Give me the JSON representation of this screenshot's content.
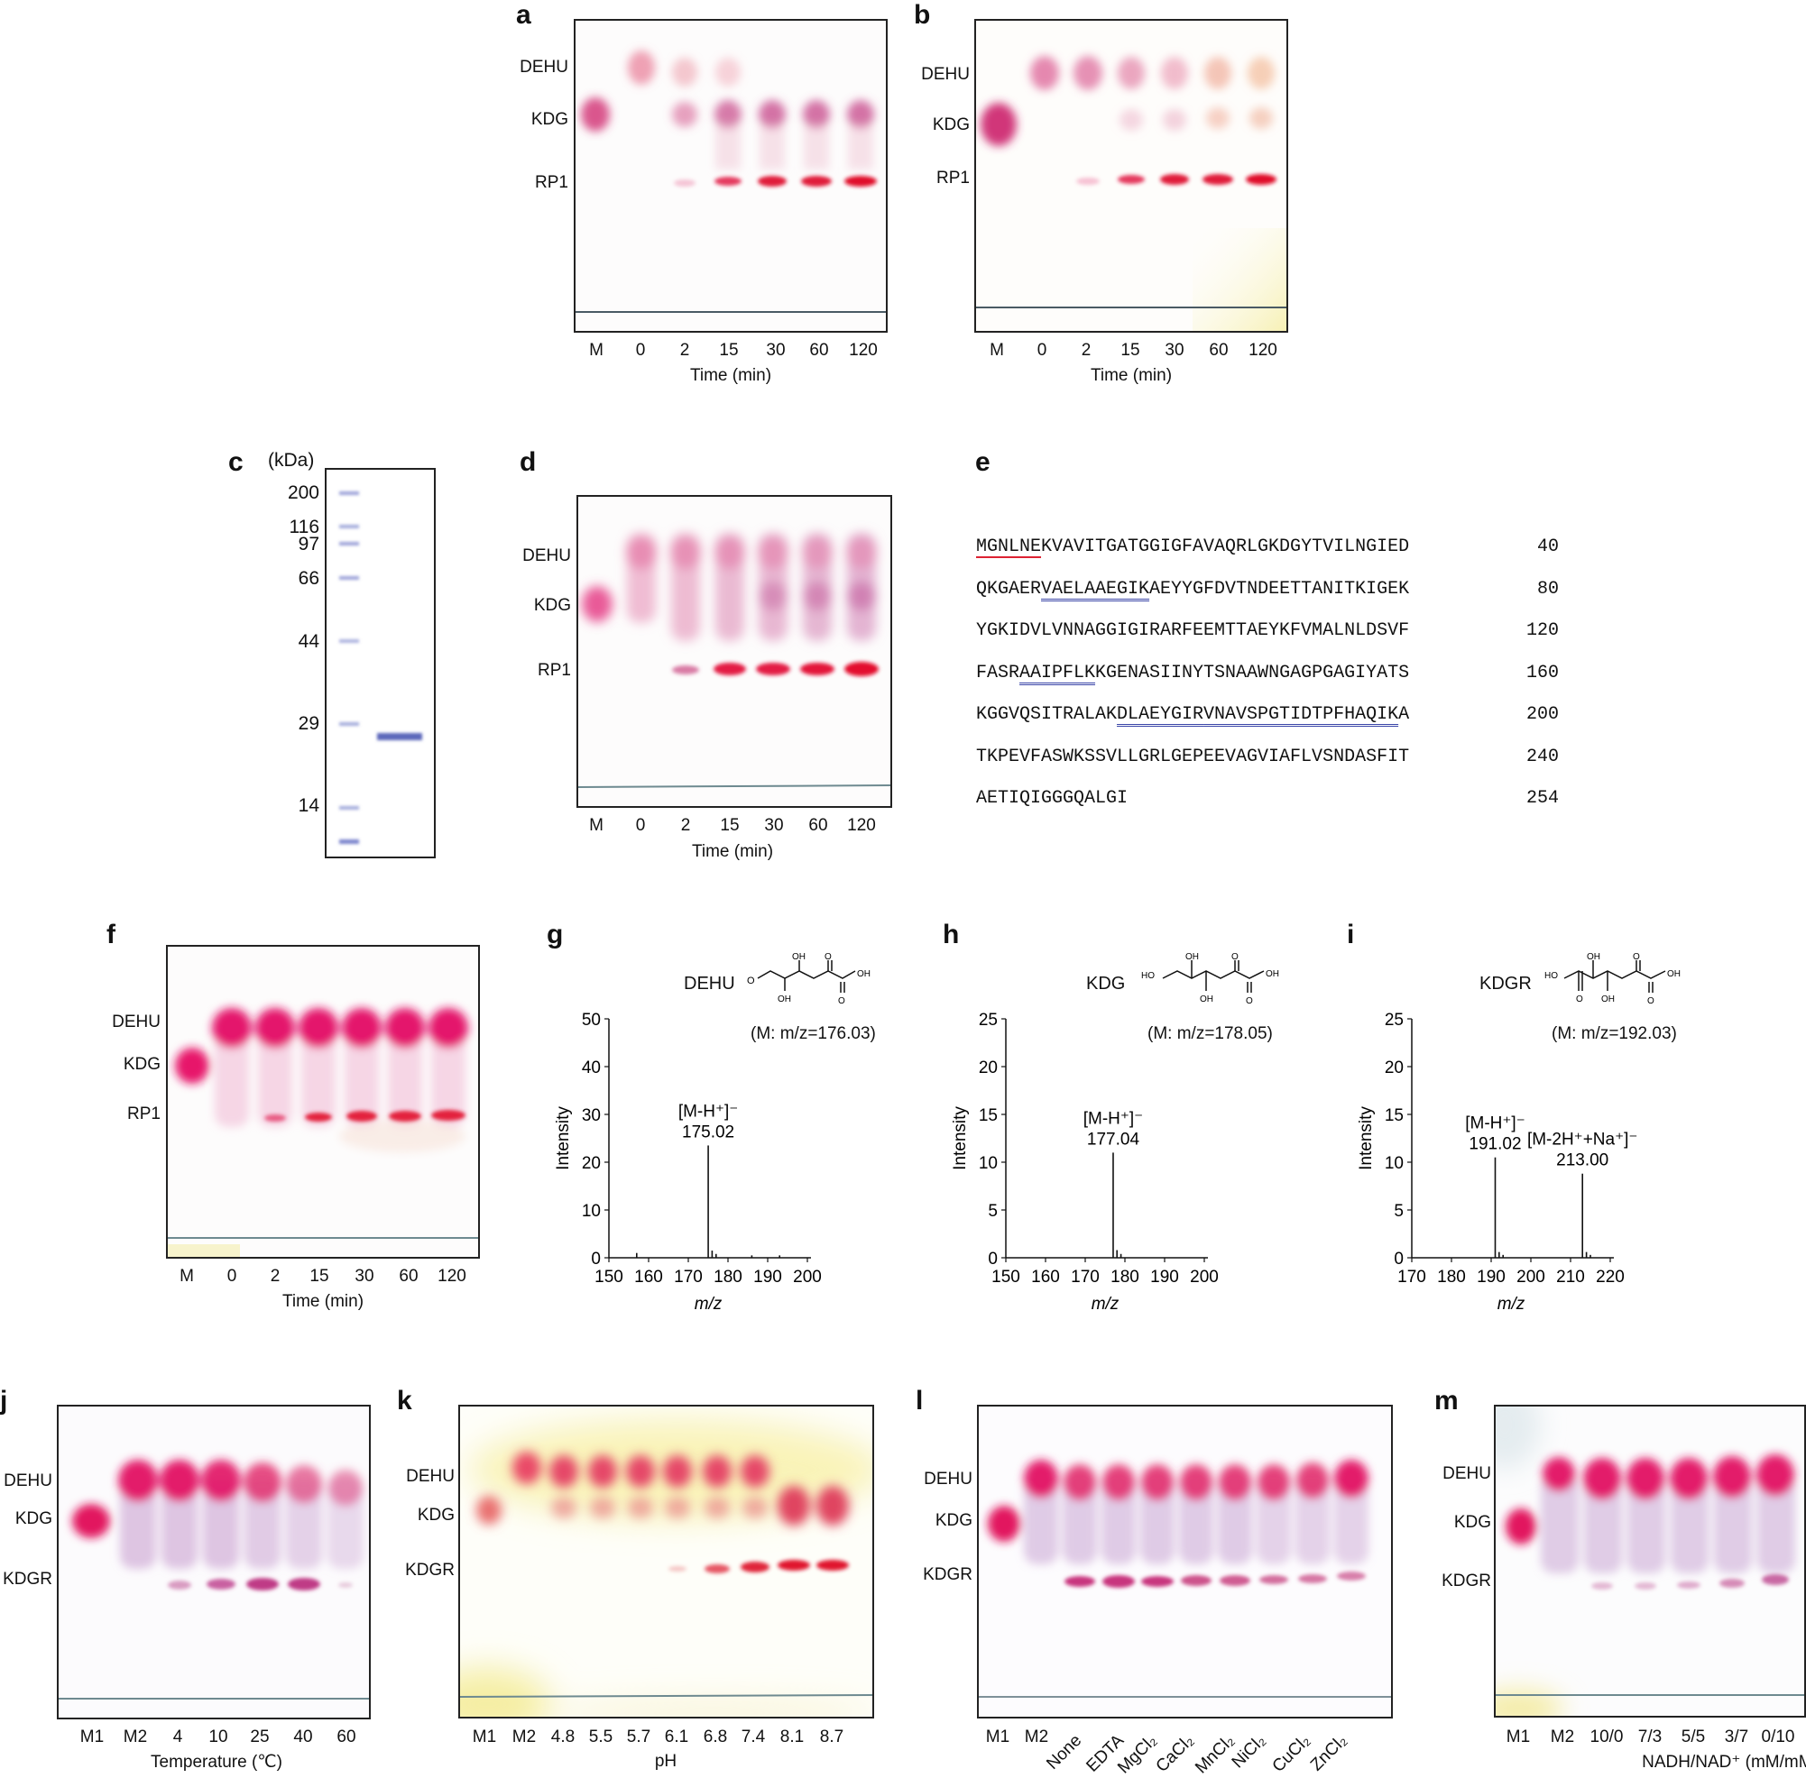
{
  "panels": {
    "a": {
      "label": "a",
      "bands": [
        "DEHU",
        "KDG",
        "RP1"
      ],
      "lanes": [
        "M",
        "0",
        "2",
        "15",
        "30",
        "60",
        "120"
      ],
      "axis_title": "Time (min)"
    },
    "b": {
      "label": "b",
      "bands": [
        "DEHU",
        "KDG",
        "RP1"
      ],
      "lanes": [
        "M",
        "0",
        "2",
        "15",
        "30",
        "60",
        "120"
      ],
      "axis_title": "Time (min)"
    },
    "c": {
      "label": "c",
      "unit": "(kDa)",
      "markers": [
        "200",
        "116",
        "97",
        "66",
        "44",
        "29",
        "14"
      ]
    },
    "d": {
      "label": "d",
      "bands": [
        "DEHU",
        "KDG",
        "RP1"
      ],
      "lanes": [
        "M",
        "0",
        "2",
        "15",
        "30",
        "60",
        "120"
      ],
      "axis_title": "Time (min)"
    },
    "e": {
      "label": "e",
      "lines": [
        {
          "segments": [
            {
              "t": "MGNLNE",
              "u": "red"
            },
            {
              "t": "KVAVITGATGGIGFAVAQRLGKDGYTVILNGIED",
              "u": ""
            }
          ],
          "num": "40"
        },
        {
          "segments": [
            {
              "t": "QKGAER",
              "u": ""
            },
            {
              "t": "VAELAAEGIK",
              "u": "blue"
            },
            {
              "t": "AEYYGFDVTNDEETTANITKIGEK",
              "u": ""
            }
          ],
          "num": "80"
        },
        {
          "segments": [
            {
              "t": "YGKIDVLVNNAGGIGIRARFEEMTTAEYKFVMALNLDSVF",
              "u": ""
            }
          ],
          "num": "120"
        },
        {
          "segments": [
            {
              "t": "FASR",
              "u": ""
            },
            {
              "t": "AAIPFLK",
              "u": "blue"
            },
            {
              "t": "KGENASIINYTSNAAWNGAGPGAGIYATS",
              "u": ""
            }
          ],
          "num": "160"
        },
        {
          "segments": [
            {
              "t": "KGGVQSITRALAK",
              "u": ""
            },
            {
              "t": "DLAEYGIR",
              "u": "blue"
            },
            {
              "t": "VNAVSPGTIDTPFHAQIK",
              "u": "blue"
            },
            {
              "t": "A",
              "u": ""
            }
          ],
          "num": "200"
        },
        {
          "segments": [
            {
              "t": "TKPEVFASWKSSVLLGRLGEPEEVAGVIAFLVSNDASFIT",
              "u": ""
            }
          ],
          "num": "240"
        },
        {
          "segments": [
            {
              "t": "AETIQIGGGQALGI",
              "u": ""
            }
          ],
          "num": "254"
        }
      ]
    },
    "f": {
      "label": "f",
      "bands": [
        "DEHU",
        "KDG",
        "RP1"
      ],
      "lanes": [
        "M",
        "0",
        "2",
        "15",
        "30",
        "60",
        "120"
      ],
      "axis_title": "Time (min)"
    },
    "j": {
      "label": "j",
      "bands": [
        "DEHU",
        "KDG",
        "KDGR"
      ],
      "lanes": [
        "M1",
        "M2",
        "4",
        "10",
        "25",
        "40",
        "60"
      ],
      "axis_title": "Temperature (℃)"
    },
    "k": {
      "label": "k",
      "bands": [
        "DEHU",
        "KDG",
        "KDGR"
      ],
      "lanes": [
        "M1",
        "M2",
        "4.8",
        "5.5",
        "5.7",
        "6.1",
        "6.8",
        "7.4",
        "8.1",
        "8.7"
      ],
      "axis_title": "pH"
    },
    "l": {
      "label": "l",
      "bands": [
        "DEHU",
        "KDG",
        "KDGR"
      ],
      "lanes": [
        "M1",
        "M2",
        "None",
        "EDTA",
        "MgCl₂",
        "CaCl₂",
        "MnCl₂",
        "NiCl₂",
        "CuCl₂",
        "ZnCl₂"
      ]
    },
    "m": {
      "label": "m",
      "bands": [
        "DEHU",
        "KDG",
        "KDGR"
      ],
      "lanes": [
        "M1",
        "M2",
        "10/0",
        "7/3",
        "5/5",
        "3/7",
        "0/10"
      ],
      "axis_title": "NADH/NAD⁺ (mM/mM)"
    }
  },
  "chart_data": [
    {
      "panel": "g",
      "type": "bar",
      "compound": "DEHU",
      "mass_label": "(M: m/z=176.03)",
      "xlabel": "m/z",
      "ylabel": "Intensity",
      "xlim": [
        150,
        200
      ],
      "ylim": [
        0,
        50
      ],
      "xticks": [
        "150",
        "160",
        "170",
        "180",
        "190",
        "200"
      ],
      "yticks": [
        "0",
        "10",
        "20",
        "30",
        "40",
        "50"
      ],
      "peaks": [
        {
          "mz": 175.02,
          "intensity": 23.5
        },
        {
          "mz": 157.0,
          "intensity": 1.0
        },
        {
          "mz": 176.0,
          "intensity": 1.5
        },
        {
          "mz": 177.0,
          "intensity": 0.8
        },
        {
          "mz": 186.0,
          "intensity": 0.5
        },
        {
          "mz": 193.0,
          "intensity": 0.5
        }
      ],
      "annotations": [
        {
          "ion": "[M-H⁺]⁻",
          "mz": "175.02"
        }
      ]
    },
    {
      "panel": "h",
      "type": "bar",
      "compound": "KDG",
      "mass_label": "(M: m/z=178.05)",
      "xlabel": "m/z",
      "ylabel": "Intensity",
      "xlim": [
        150,
        200
      ],
      "ylim": [
        0,
        25
      ],
      "xticks": [
        "150",
        "160",
        "170",
        "180",
        "190",
        "200"
      ],
      "yticks": [
        "0",
        "5",
        "10",
        "15",
        "20",
        "25"
      ],
      "peaks": [
        {
          "mz": 177.04,
          "intensity": 11.0
        },
        {
          "mz": 178.0,
          "intensity": 0.8
        },
        {
          "mz": 179.0,
          "intensity": 0.4
        }
      ],
      "annotations": [
        {
          "ion": "[M-H⁺]⁻",
          "mz": "177.04"
        }
      ]
    },
    {
      "panel": "i",
      "type": "bar",
      "compound": "KDGR",
      "mass_label": "(M: m/z=192.03)",
      "xlabel": "m/z",
      "ylabel": "Intensity",
      "xlim": [
        170,
        220
      ],
      "ylim": [
        0,
        25
      ],
      "xticks": [
        "170",
        "180",
        "190",
        "200",
        "210",
        "220"
      ],
      "yticks": [
        "0",
        "5",
        "10",
        "15",
        "20",
        "25"
      ],
      "peaks": [
        {
          "mz": 191.02,
          "intensity": 10.5
        },
        {
          "mz": 192.0,
          "intensity": 0.6
        },
        {
          "mz": 193.0,
          "intensity": 0.3
        },
        {
          "mz": 213.0,
          "intensity": 8.8
        },
        {
          "mz": 214.0,
          "intensity": 0.6
        },
        {
          "mz": 215.0,
          "intensity": 0.3
        }
      ],
      "annotations": [
        {
          "ion": "[M-H⁺]⁻",
          "mz": "191.02"
        },
        {
          "ion": "[M-2H⁺+Na⁺]⁻",
          "mz": "213.00"
        }
      ]
    }
  ]
}
